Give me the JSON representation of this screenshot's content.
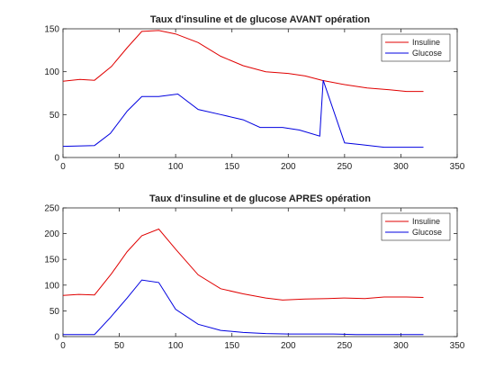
{
  "chart_data": [
    {
      "type": "line",
      "title": "Taux d'insuline et de glucose AVANT opération",
      "xlim": [
        0,
        350
      ],
      "ylim": [
        0,
        150
      ],
      "xticks": [
        "0",
        "50",
        "100",
        "150",
        "200",
        "250",
        "300",
        "350"
      ],
      "yticks": [
        "0",
        "50",
        "100",
        "150"
      ],
      "grid": false,
      "legend_position": "top-right",
      "series": [
        {
          "name": "Insuline",
          "color": "#e00000",
          "x": [
            0,
            15,
            28,
            43,
            57,
            70,
            85,
            100,
            120,
            140,
            160,
            180,
            200,
            215,
            230,
            250,
            270,
            290,
            305,
            320
          ],
          "y": [
            89,
            91,
            90,
            106,
            128,
            147,
            148,
            144,
            134,
            118,
            107,
            100,
            98,
            95,
            90,
            85,
            81,
            79,
            77,
            77
          ]
        },
        {
          "name": "Glucose",
          "color": "#0000e0",
          "x": [
            0,
            28,
            42,
            57,
            70,
            85,
            102,
            120,
            140,
            160,
            175,
            195,
            210,
            228,
            231,
            250,
            265,
            285,
            305,
            320
          ],
          "y": [
            13,
            14,
            28,
            54,
            71,
            71,
            74,
            56,
            50,
            44,
            35,
            35,
            32,
            25,
            90,
            17,
            15,
            12,
            12,
            12
          ]
        }
      ]
    },
    {
      "type": "line",
      "title": "Taux d'insuline et de glucose APRES opération",
      "xlim": [
        0,
        350
      ],
      "ylim": [
        0,
        250
      ],
      "xticks": [
        "0",
        "50",
        "100",
        "150",
        "200",
        "250",
        "300",
        "350"
      ],
      "yticks": [
        "0",
        "50",
        "100",
        "150",
        "200",
        "250"
      ],
      "grid": false,
      "legend_position": "top-right",
      "series": [
        {
          "name": "Insuline",
          "color": "#e00000",
          "x": [
            0,
            14,
            28,
            43,
            57,
            70,
            85,
            100,
            120,
            140,
            160,
            180,
            195,
            215,
            235,
            250,
            268,
            285,
            305,
            320
          ],
          "y": [
            80,
            82,
            81,
            122,
            165,
            196,
            209,
            170,
            120,
            93,
            83,
            75,
            71,
            73,
            74,
            75,
            74,
            77,
            77,
            76
          ]
        },
        {
          "name": "Glucose",
          "color": "#0000e0",
          "x": [
            0,
            15,
            28,
            42,
            57,
            70,
            85,
            100,
            120,
            140,
            160,
            180,
            200,
            220,
            240,
            260,
            280,
            300,
            320
          ],
          "y": [
            4,
            4,
            4,
            37,
            75,
            110,
            105,
            53,
            24,
            12,
            8,
            6,
            5,
            5,
            5,
            4,
            4,
            4,
            4
          ]
        }
      ]
    }
  ]
}
